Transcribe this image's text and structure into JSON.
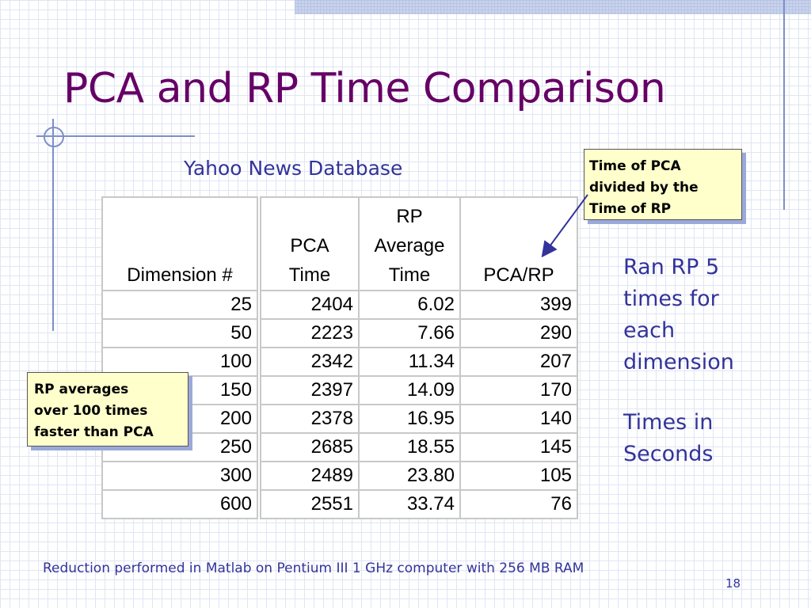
{
  "slide": {
    "title": "PCA and RP Time Comparison",
    "subtitle": "Yahoo News Database",
    "footer": "Reduction performed in Matlab on Pentium III 1 GHz computer with 256 MB RAM",
    "page_number": "18"
  },
  "table": {
    "headers": [
      {
        "lines": [
          "Dimension #"
        ]
      },
      {
        "lines": [
          "PCA",
          "Time"
        ]
      },
      {
        "lines": [
          "RP",
          "Average",
          "Time"
        ]
      },
      {
        "lines": [
          "PCA/RP"
        ]
      }
    ],
    "rows": [
      [
        "25",
        "2404",
        "6.02",
        "399"
      ],
      [
        "50",
        "2223",
        "7.66",
        "290"
      ],
      [
        "100",
        "2342",
        "11.34",
        "207"
      ],
      [
        "150",
        "2397",
        "14.09",
        "170"
      ],
      [
        "200",
        "2378",
        "16.95",
        "140"
      ],
      [
        "250",
        "2685",
        "18.55",
        "145"
      ],
      [
        "300",
        "2489",
        "23.80",
        "105"
      ],
      [
        "600",
        "2551",
        "33.74",
        "76"
      ]
    ]
  },
  "callouts": {
    "pca_rp_ratio": {
      "lines": [
        "Time of PCA",
        "divided by the",
        "Time of RP"
      ]
    },
    "rp_speed": {
      "lines": [
        "RP averages",
        "over 100 times",
        "faster than PCA"
      ]
    }
  },
  "side_notes": {
    "runs": "Ran RP 5 times for each dimension",
    "units": "Times in Seconds"
  },
  "colors": {
    "title": "#660066",
    "text_blue": "#33339a",
    "callout_fill": "#ffffcc",
    "callout_shadow": "#9aa9d8",
    "table_border": "#c8c8c8"
  }
}
